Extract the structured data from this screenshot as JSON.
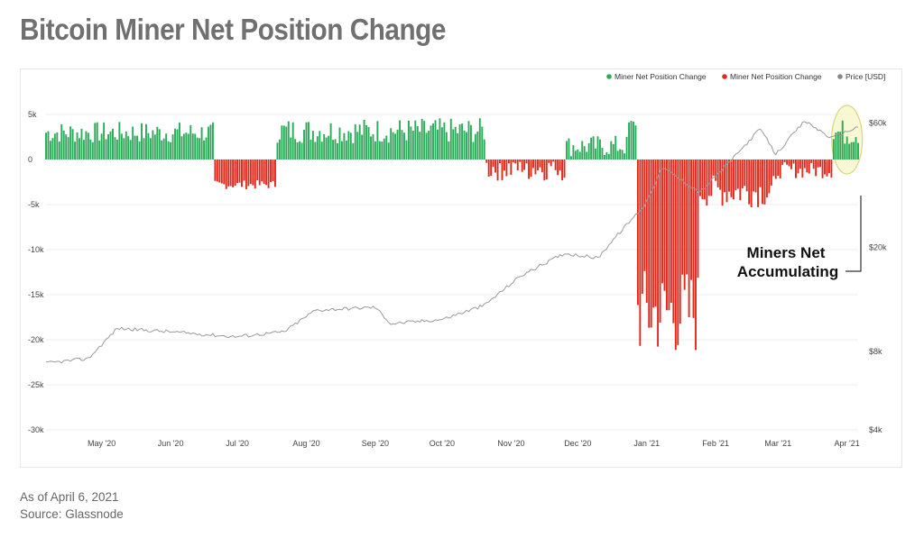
{
  "title": "Bitcoin Miner Net Position Change",
  "footer": {
    "as_of": "As of April 6, 2021",
    "source": "Source: Glassnode"
  },
  "annotation": {
    "line1": "Miners Net",
    "line2": "Accumulating"
  },
  "colors": {
    "positive": "#2dab5a",
    "negative": "#e02a1d",
    "price": "#999999",
    "highlight_fill": "#f6f5c6",
    "highlight_stroke": "#d9d77a"
  },
  "chart_data": {
    "type": "bar",
    "legend": [
      {
        "label": "Miner Net Position Change",
        "color": "#2dab5a"
      },
      {
        "label": "Miner Net Position Change",
        "color": "#e02a1d"
      },
      {
        "label": "Price [USD]",
        "color": "#888888"
      }
    ],
    "legend_position": "top-right",
    "x_ticks": [
      "May '20",
      "Jun '20",
      "Jul '20",
      "Aug '20",
      "Sep '20",
      "Oct '20",
      "Nov '20",
      "Dec '20",
      "Jan '21",
      "Feb '21",
      "Mar '21",
      "Apr '21"
    ],
    "x_range": [
      "2020-04-06",
      "2021-04-06"
    ],
    "y_left_ticks": [
      5000,
      0,
      -5000,
      -10000,
      -15000,
      -20000,
      -25000,
      -30000
    ],
    "y_left_tick_labels": [
      "5k",
      "0",
      "-5k",
      "-10k",
      "-15k",
      "-20k",
      "-25k",
      "-30k"
    ],
    "y_left_range": [
      -30000,
      6000
    ],
    "y_right_ticks": [
      4000,
      8000,
      20000,
      60000
    ],
    "y_right_tick_labels": [
      "$4k",
      "$8k",
      "$20k",
      "$60k"
    ],
    "y_right_scale": "log",
    "grid": "horizontal",
    "net_position_segments": [
      {
        "start": "2020-04-06",
        "end": "2020-06-20",
        "base": 3000,
        "amp": 1200
      },
      {
        "start": "2020-06-21",
        "end": "2020-07-18",
        "base": -2800,
        "amp": 500
      },
      {
        "start": "2020-07-19",
        "end": "2020-10-20",
        "base": 3200,
        "amp": 1400
      },
      {
        "start": "2020-10-21",
        "end": "2020-11-25",
        "base": -900,
        "amp": 1500
      },
      {
        "start": "2020-11-26",
        "end": "2020-12-23",
        "base": 1500,
        "amp": 1200
      },
      {
        "start": "2020-12-24",
        "end": "2020-12-27",
        "base": 4000,
        "amp": 500
      },
      {
        "start": "2020-12-28",
        "end": "2021-01-24",
        "base": -17000,
        "amp": 5000
      },
      {
        "start": "2021-01-25",
        "end": "2021-02-28",
        "base": -3500,
        "amp": 1800
      },
      {
        "start": "2021-03-01",
        "end": "2021-03-25",
        "base": -1200,
        "amp": 900
      },
      {
        "start": "2021-03-26",
        "end": "2021-04-06",
        "base": 3000,
        "amp": 1500
      }
    ],
    "price_points": [
      {
        "date": "2020-04-06",
        "price": 7200
      },
      {
        "date": "2020-04-25",
        "price": 7500
      },
      {
        "date": "2020-05-08",
        "price": 9800
      },
      {
        "date": "2020-06-01",
        "price": 9500
      },
      {
        "date": "2020-06-30",
        "price": 9100
      },
      {
        "date": "2020-07-22",
        "price": 9500
      },
      {
        "date": "2020-08-05",
        "price": 11500
      },
      {
        "date": "2020-09-01",
        "price": 11800
      },
      {
        "date": "2020-09-08",
        "price": 10200
      },
      {
        "date": "2020-10-01",
        "price": 10600
      },
      {
        "date": "2020-10-20",
        "price": 12000
      },
      {
        "date": "2020-11-05",
        "price": 15500
      },
      {
        "date": "2020-11-25",
        "price": 19000
      },
      {
        "date": "2020-12-10",
        "price": 18200
      },
      {
        "date": "2020-12-16",
        "price": 21000
      },
      {
        "date": "2020-12-31",
        "price": 29000
      },
      {
        "date": "2021-01-08",
        "price": 40500
      },
      {
        "date": "2021-01-25",
        "price": 32500
      },
      {
        "date": "2021-02-10",
        "price": 45000
      },
      {
        "date": "2021-02-21",
        "price": 57000
      },
      {
        "date": "2021-02-28",
        "price": 45500
      },
      {
        "date": "2021-03-13",
        "price": 61000
      },
      {
        "date": "2021-03-25",
        "price": 52500
      },
      {
        "date": "2021-04-06",
        "price": 58000
      }
    ]
  }
}
